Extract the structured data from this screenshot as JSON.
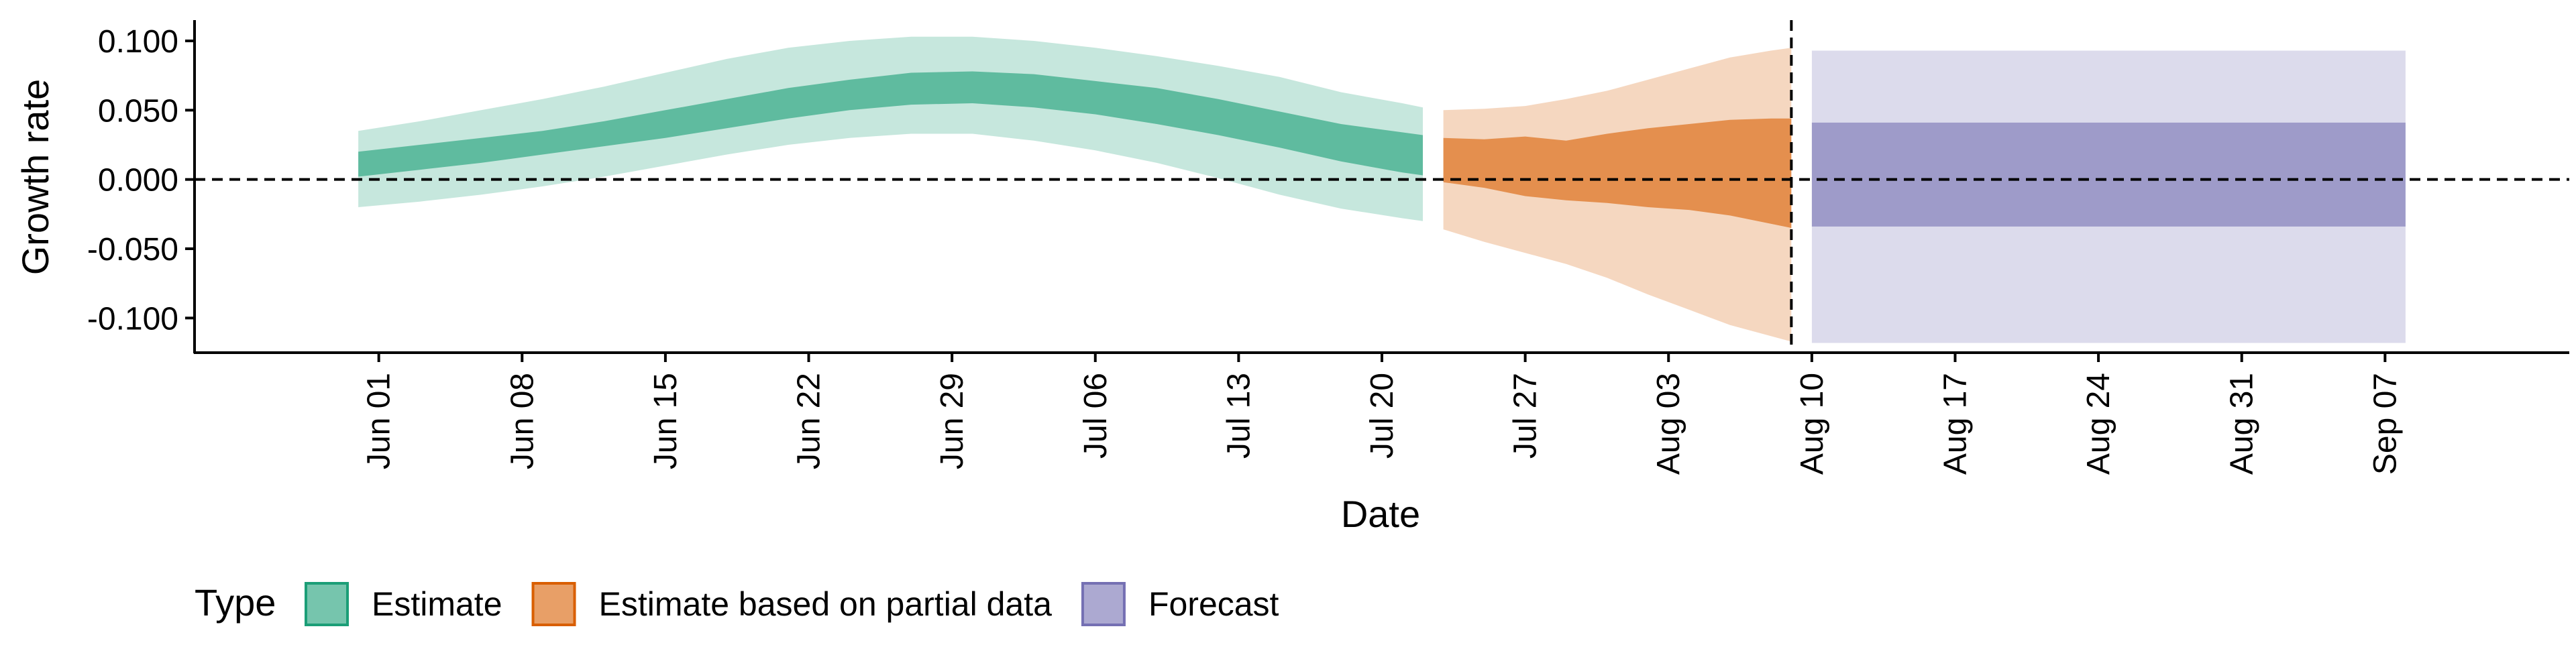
{
  "chart_data": {
    "type": "area",
    "xlabel": "Date",
    "ylabel": "Growth rate",
    "ylim": [
      -0.125,
      0.115
    ],
    "xlim": [
      "2020-05-23",
      "2020-09-16"
    ],
    "y_ticks": [
      0.1,
      0.05,
      0.0,
      -0.05,
      -0.1
    ],
    "y_tick_labels": [
      "0.100",
      "0.050",
      "0.000",
      "-0.050",
      "-0.100"
    ],
    "x_ticks": [
      "2020-06-01",
      "2020-06-08",
      "2020-06-15",
      "2020-06-22",
      "2020-06-29",
      "2020-07-06",
      "2020-07-13",
      "2020-07-20",
      "2020-07-27",
      "2020-08-03",
      "2020-08-10",
      "2020-08-17",
      "2020-08-24",
      "2020-08-31",
      "2020-09-07"
    ],
    "x_tick_labels": [
      "Jun 01",
      "Jun 08",
      "Jun 15",
      "Jun 22",
      "Jun 29",
      "Jul 06",
      "Jul 13",
      "Jul 20",
      "Jul 27",
      "Aug 03",
      "Aug 10",
      "Aug 17",
      "Aug 24",
      "Aug 31",
      "Sep 07"
    ],
    "hline_y": 0.0,
    "vline_x": "2020-08-09",
    "grid": false,
    "legend": {
      "title": "Type",
      "position": "bottom-left",
      "items": [
        {
          "label": "Estimate",
          "color": "#1b9e77"
        },
        {
          "label": "Estimate based on partial data",
          "color": "#d95f02"
        },
        {
          "label": "Forecast",
          "color": "#7570b3"
        }
      ]
    },
    "series": [
      {
        "name": "Estimate",
        "color": "#1b9e77",
        "dates": [
          "2020-05-31",
          "2020-06-03",
          "2020-06-06",
          "2020-06-09",
          "2020-06-12",
          "2020-06-15",
          "2020-06-18",
          "2020-06-21",
          "2020-06-24",
          "2020-06-27",
          "2020-06-30",
          "2020-07-03",
          "2020-07-06",
          "2020-07-09",
          "2020-07-12",
          "2020-07-15",
          "2020-07-18",
          "2020-07-21",
          "2020-07-22"
        ],
        "outer_upper": [
          0.035,
          0.042,
          0.05,
          0.058,
          0.067,
          0.077,
          0.087,
          0.095,
          0.1,
          0.103,
          0.103,
          0.1,
          0.095,
          0.089,
          0.082,
          0.074,
          0.063,
          0.055,
          0.052
        ],
        "inner_upper": [
          0.02,
          0.025,
          0.03,
          0.035,
          0.042,
          0.05,
          0.058,
          0.066,
          0.072,
          0.077,
          0.078,
          0.076,
          0.071,
          0.066,
          0.058,
          0.049,
          0.04,
          0.034,
          0.032
        ],
        "inner_lower": [
          0.002,
          0.007,
          0.012,
          0.018,
          0.024,
          0.03,
          0.037,
          0.044,
          0.05,
          0.054,
          0.055,
          0.052,
          0.047,
          0.04,
          0.032,
          0.023,
          0.013,
          0.005,
          0.003
        ],
        "outer_lower": [
          -0.02,
          -0.016,
          -0.011,
          -0.005,
          0.002,
          0.01,
          0.018,
          0.025,
          0.03,
          0.033,
          0.033,
          0.028,
          0.021,
          0.012,
          0.001,
          -0.011,
          -0.021,
          -0.028,
          -0.03
        ]
      },
      {
        "name": "Estimate based on partial data",
        "color": "#d95f02",
        "dates": [
          "2020-07-23",
          "2020-07-25",
          "2020-07-27",
          "2020-07-29",
          "2020-07-31",
          "2020-08-02",
          "2020-08-04",
          "2020-08-06",
          "2020-08-08",
          "2020-08-09"
        ],
        "outer_upper": [
          0.05,
          0.051,
          0.053,
          0.058,
          0.064,
          0.072,
          0.08,
          0.088,
          0.093,
          0.095
        ],
        "inner_upper": [
          0.03,
          0.029,
          0.031,
          0.028,
          0.033,
          0.037,
          0.04,
          0.043,
          0.044,
          0.044
        ],
        "inner_lower": [
          -0.002,
          -0.006,
          -0.012,
          -0.015,
          -0.017,
          -0.02,
          -0.022,
          -0.026,
          -0.032,
          -0.035
        ],
        "outer_lower": [
          -0.036,
          -0.045,
          -0.053,
          -0.061,
          -0.071,
          -0.083,
          -0.094,
          -0.105,
          -0.113,
          -0.117
        ]
      },
      {
        "name": "Forecast",
        "color": "#7570b3",
        "dates": [
          "2020-08-10",
          "2020-09-08"
        ],
        "outer_upper": [
          0.093,
          0.093
        ],
        "inner_upper": [
          0.041,
          0.041
        ],
        "inner_lower": [
          -0.034,
          -0.034
        ],
        "outer_lower": [
          -0.118,
          -0.118
        ]
      }
    ]
  }
}
